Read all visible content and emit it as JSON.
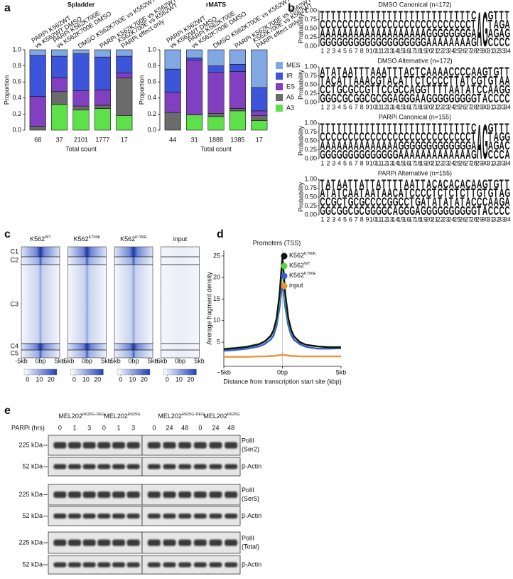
{
  "panel_labels": [
    "a",
    "b",
    "c",
    "d",
    "e"
  ],
  "chart_data": [
    {
      "type": "bar",
      "stacked": true,
      "title": "Spladder",
      "ylabel": "Proportion",
      "xlabel": "Total count",
      "categories": [
        [
          "PARPi K562WT",
          "vs K562WT DMSO"
        ],
        [
          "PARPi K562K700E",
          "vs K562K700E DMSO"
        ],
        [
          "DMSO K562K700E vs K562WT"
        ],
        [
          "PARPi K562K700E vs K562WT"
        ],
        [
          "K562K700E vs K562WT",
          "PARPi effect only"
        ]
      ],
      "counts": [
        68,
        37,
        2101,
        1777,
        17
      ],
      "ylim": [
        0,
        1
      ],
      "yticks": [
        {
          "value": 0,
          "label": "0.0"
        },
        0.2,
        0.4,
        0.6,
        0.8,
        {
          "value": 1,
          "label": "1.0"
        }
      ],
      "series": [
        {
          "color": "#5ee04a",
          "values": [
            0,
            0.32,
            0.25,
            0.27,
            0.18
          ]
        },
        {
          "color": "#6b6b6b",
          "values": [
            0.05,
            0.16,
            0.05,
            0.04,
            0.47
          ]
        },
        {
          "color": "#8040c0",
          "values": [
            0.37,
            0.17,
            0.19,
            0.19,
            0.06
          ]
        },
        {
          "color": "#3d55d8",
          "values": [
            0.51,
            0.27,
            0.46,
            0.41,
            0.21
          ]
        },
        {
          "color": "#82a8e4",
          "values": [
            0.07,
            0.08,
            0.05,
            0.09,
            0.08
          ]
        }
      ]
    },
    {
      "type": "bar",
      "stacked": true,
      "title": "rMATS",
      "ylabel": "Proportion",
      "xlabel": "Total count",
      "categories": [
        [
          "PARPi K562WT",
          "vs K562WT DMSO"
        ],
        [
          "PARPi K562K700E",
          "vs K562K700E DMSO"
        ],
        [
          "DMSO K562K700E vs K562WT"
        ],
        [
          "PARPi K562K700E vs K562WT"
        ],
        [
          "K562K700E vs K562WT",
          "PARPi effect only"
        ]
      ],
      "counts": [
        44,
        31,
        1888,
        1385,
        17
      ],
      "ylim": [
        0,
        1
      ],
      "yticks": [
        {
          "value": 0,
          "label": "0.0"
        },
        0.2,
        0.4,
        0.6,
        0.8,
        {
          "value": 1,
          "label": "1.0"
        }
      ],
      "series": [
        {
          "name": "A3",
          "color": "#5ee04a",
          "values": [
            0,
            0.19,
            0.17,
            0.24,
            0.12
          ]
        },
        {
          "name": "A5",
          "color": "#6b6b6b",
          "values": [
            0.22,
            0,
            0.04,
            0.03,
            0.06
          ]
        },
        {
          "name": "ES",
          "color": "#8040c0",
          "values": [
            0.25,
            0.68,
            0.51,
            0.46,
            0.06
          ]
        },
        {
          "name": "IR",
          "color": "#3d55d8",
          "values": [
            0.29,
            0.03,
            0.08,
            0.09,
            0.29
          ]
        },
        {
          "name": "MES",
          "color": "#82a8e4",
          "values": [
            0.24,
            0.1,
            0.2,
            0.18,
            0.47
          ]
        }
      ]
    },
    {
      "type": "line",
      "title": "Promoters (TSS)",
      "ylabel": "Average fragment density",
      "xlabel": "Distance from transcription start site (kbp)",
      "x": [
        -5000,
        -4000,
        -3000,
        -2000,
        -1500,
        -1000,
        -750,
        -500,
        -250,
        -100,
        0,
        100,
        250,
        500,
        750,
        1000,
        1500,
        2000,
        3000,
        4000,
        5000
      ],
      "xlim": [
        -5000,
        5000
      ],
      "xticks": [
        {
          "value": -5000,
          "label": "−5kb"
        },
        {
          "value": 0,
          "label": "0bp"
        },
        {
          "value": 5000,
          "label": "5kb"
        }
      ],
      "ylim": [
        -0.6,
        26.3
      ],
      "yticks": [
        5,
        10,
        15,
        20,
        25
      ],
      "series": [
        {
          "name": {
            "text": "K562",
            "sup": "K700K"
          },
          "color": "#111111",
          "values": [
            3.4,
            3.6,
            3.9,
            4.5,
            5.2,
            6.5,
            7.8,
            10.5,
            16,
            21.5,
            24.7,
            21.5,
            16,
            10.5,
            7.8,
            6.3,
            5,
            4.4,
            4.0,
            3.8,
            3.8
          ]
        },
        {
          "name": {
            "text": "K562",
            "sup": "WT"
          },
          "color": "#4fd83f",
          "values": [
            3.5,
            3.7,
            4.0,
            4.6,
            5.2,
            6.3,
            7.5,
            10,
            15,
            19.5,
            22,
            19.5,
            15,
            10,
            7.5,
            6.2,
            5,
            4.4,
            4.0,
            3.9,
            3.9
          ]
        },
        {
          "name": {
            "text": "K562",
            "sup": "K700E"
          },
          "color": "#3b5bdb",
          "values": [
            3.0,
            3.2,
            3.5,
            4.0,
            4.6,
            5.6,
            6.6,
            8.8,
            13,
            16.5,
            18.5,
            16.5,
            13,
            8.8,
            6.6,
            5.5,
            4.5,
            3.9,
            3.5,
            3.5,
            3.6
          ]
        },
        {
          "name": {
            "text": "input"
          },
          "color": "#f0913a",
          "values": [
            1.6,
            1.6,
            1.6,
            1.7,
            1.7,
            1.8,
            1.8,
            1.9,
            2.0,
            2.0,
            2.1,
            2.0,
            2.0,
            1.9,
            1.8,
            1.8,
            1.7,
            1.7,
            1.7,
            1.7,
            1.7
          ]
        }
      ]
    }
  ],
  "logos": {
    "ylabel": "Probability",
    "yticks": [
      {
        "value": 0,
        "label": "0.00"
      },
      {
        "value": 0.25,
        "label": "0.25"
      },
      {
        "value": 0.5,
        "label": "0.50"
      },
      {
        "value": 0.75,
        "label": "0.75"
      },
      {
        "value": 1,
        "label": "1.00"
      }
    ],
    "positions": [
      1,
      2,
      3,
      4,
      5,
      6,
      7,
      8,
      9,
      10,
      11,
      12,
      13,
      14,
      15,
      16,
      17,
      18,
      19,
      20,
      21,
      22,
      23,
      24,
      25,
      26,
      27,
      28,
      29,
      30,
      31,
      32,
      33,
      34
    ],
    "colors": {
      "A": "#3aa63a",
      "C": "#2f6fd0",
      "G": "#f2a81e",
      "T": "#d9262d"
    },
    "panels": [
      {
        "title": "DMSO Canonical (n=172)",
        "stacks": [
          "GACT",
          "GACT",
          "GACT",
          "GACT",
          "GACT",
          "GACT",
          "GACT",
          "GACT",
          "GACT",
          "GACT",
          "GACT",
          "GACT",
          "GACT",
          "GACT",
          "GACT",
          "GACT",
          "GACT",
          "GACT",
          "GACT",
          "AGCT",
          "AGCT",
          "AGCT",
          "AGCT",
          "AGCT",
          "AGCT",
          "AGCT",
          "AGCT",
          "GATC",
          "A",
          "G",
          "CATG",
          "CGAT",
          "CAGT",
          "CGAT"
        ]
      },
      {
        "title": "DMSO Alternative (n=172)",
        "stacks": [
          "GCTA",
          "GCAT",
          "GTCA",
          "CGAT",
          "GCTA",
          "CGTA",
          "GCAT",
          "GCAT",
          "CGAT",
          "GTCA",
          "CTGA",
          "GCTA",
          "GCAT",
          "AGCT",
          "GCAT",
          "GCTA",
          "GATC",
          "AGCT",
          "AGTC",
          "GTCA",
          "GTCA",
          "GTCA",
          "GTCA",
          "GATC",
          "GATC",
          "GTAC",
          "GATC",
          "GTCA",
          "TCGA",
          "ACTG",
          "CAGT",
          "CATG",
          "CGAT",
          "CGAT"
        ]
      },
      {
        "title": "PARPi Canonical (n=155)",
        "stacks": [
          "GACT",
          "GACT",
          "GACT",
          "GACT",
          "GACT",
          "GACT",
          "GACT",
          "GACT",
          "GACT",
          "GACT",
          "GACT",
          "GACT",
          "GACT",
          "GACT",
          "AGCT",
          "AGCT",
          "AGCT",
          "AGCT",
          "AGCT",
          "AGCT",
          "AGCT",
          "AGCT",
          "AGCT",
          "AGCT",
          "AGCT",
          "AGCT",
          "AGCT",
          "GATC",
          "A",
          "G",
          "CATG",
          "CGAT",
          "CAGT",
          "ACGT"
        ]
      },
      {
        "title": "PARPi Alternative (n=155)",
        "stacks": [
          "GCAT",
          "GCTA",
          "CGAT",
          "GCTA",
          "GTCA",
          "CGAT",
          "GCAT",
          "CGTA",
          "GCAT",
          "GCAT",
          "GCTA",
          "GCAT",
          "CGAT",
          "AGCT",
          "GCAT",
          "GCTA",
          "GTCA",
          "AGCT",
          "GACT",
          "GTCA",
          "GATC",
          "GTCA",
          "GATC",
          "GTCA",
          "GATC",
          "GTCA",
          "GATC",
          "GCTA",
          "TCGA",
          "ACTG",
          "CAGT",
          "CATG",
          "CGAT",
          "CAGT"
        ]
      }
    ]
  },
  "heatmap": {
    "columns": [
      {
        "text": "K562",
        "sup": "WT"
      },
      {
        "text": "K562",
        "sup": "K700K"
      },
      {
        "text": "K562",
        "sup": "K700E"
      },
      {
        "text": "input"
      }
    ],
    "clusters": [
      "C1",
      "C2",
      "C3",
      "C4",
      "C5"
    ],
    "xticks": [
      "-5kb",
      "0bp",
      "5kb"
    ],
    "colorbar_lim": [
      -3,
      25
    ],
    "colorbar_ticks": [
      0,
      10,
      20
    ]
  },
  "blot": {
    "groups": [
      {
        "text": "MEL202",
        "sup": "R625G-DEG"
      },
      {
        "text": "MEL202",
        "sup": "R625G"
      },
      {
        "text": "MEL202",
        "sup": "R625G-DEG"
      },
      {
        "text": "MEL202",
        "sup": "R625G"
      }
    ],
    "treatment_label": "PARPi (hrs)",
    "timepoints": [
      0,
      1,
      3,
      0,
      1,
      3,
      0,
      24,
      48,
      0,
      24,
      48
    ],
    "rows": [
      {
        "kda": "225 kDa",
        "target": [
          "PolII",
          "(Ser2)"
        ]
      },
      {
        "kda": "52 kDa",
        "target": [
          "β-Actin"
        ]
      },
      {
        "kda": "225 kDa",
        "target": [
          "PolII",
          "(Ser5)"
        ]
      },
      {
        "kda": "52 kDa",
        "target": [
          "β-Actin"
        ]
      },
      {
        "kda": "225 kDa",
        "target": [
          "PolII",
          "(Total)"
        ]
      },
      {
        "kda": "52 kDa",
        "target": [
          "β-Actin"
        ]
      }
    ]
  }
}
